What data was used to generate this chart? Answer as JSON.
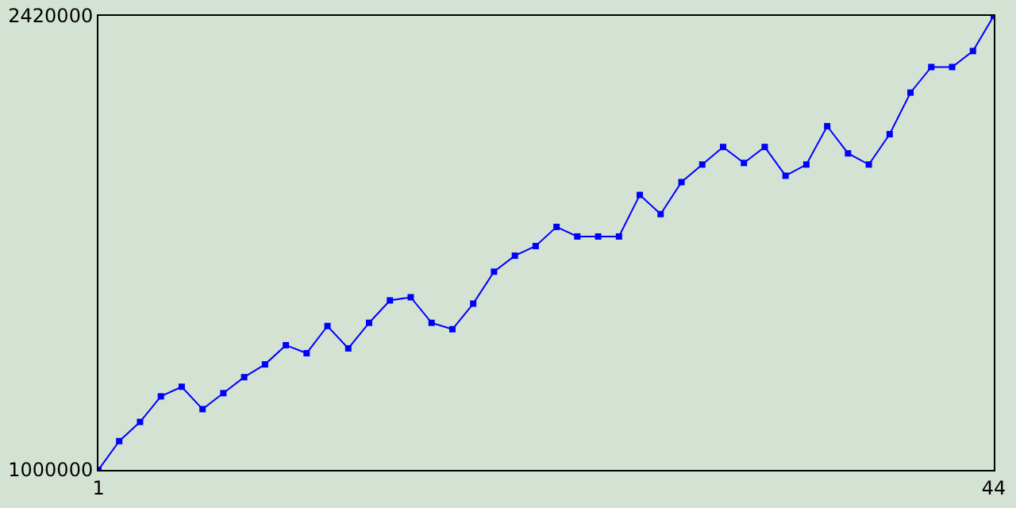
{
  "chart_data": {
    "type": "line",
    "marker": "square",
    "x": [
      1,
      2,
      3,
      4,
      5,
      6,
      7,
      8,
      9,
      10,
      11,
      12,
      13,
      14,
      15,
      16,
      17,
      18,
      19,
      20,
      21,
      22,
      23,
      24,
      25,
      26,
      27,
      28,
      29,
      30,
      31,
      32,
      33,
      34,
      35,
      36,
      37,
      38,
      39,
      40,
      41,
      42,
      43,
      44
    ],
    "series": [
      {
        "color": "#0000ff",
        "values": [
          1000000,
          1090000,
          1150000,
          1230000,
          1260000,
          1190000,
          1240000,
          1290000,
          1330000,
          1390000,
          1365000,
          1450000,
          1380000,
          1460000,
          1530000,
          1540000,
          1460000,
          1440000,
          1520000,
          1620000,
          1670000,
          1700000,
          1760000,
          1730000,
          1730000,
          1730000,
          1860000,
          1800000,
          1900000,
          1955000,
          2010000,
          1960000,
          2010000,
          1920000,
          1955000,
          2075000,
          1990000,
          1955000,
          2050000,
          2180000,
          2260000,
          2260000,
          2310000,
          2420000
        ]
      }
    ],
    "xlim": [
      1,
      44
    ],
    "xticks": [
      1,
      44
    ],
    "ylim": [
      1000000,
      2420000
    ],
    "yticks": [
      1000000,
      2420000
    ]
  }
}
